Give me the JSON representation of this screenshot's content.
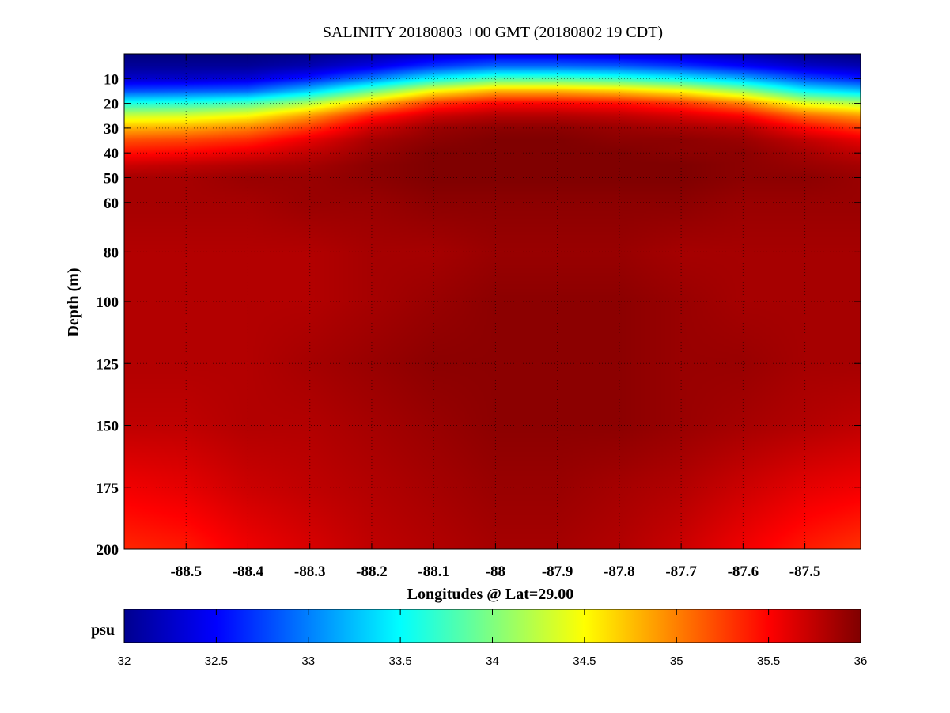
{
  "chart_data": {
    "type": "heatmap",
    "title": "SALINITY 20180803 +00 GMT (20180802 19 CDT)",
    "xlabel": "Longitudes @ Lat=29.00",
    "ylabel": "Depth (m)",
    "x_ticks": [
      -88.5,
      -88.4,
      -88.3,
      -88.2,
      -88.1,
      -88,
      -87.9,
      -87.8,
      -87.7,
      -87.6,
      -87.5
    ],
    "x_tick_labels": [
      "-88.5",
      "-88.4",
      "-88.3",
      "-88.2",
      "-88.1",
      "-88",
      "-87.9",
      "-87.8",
      "-87.7",
      "-87.6",
      "-87.5"
    ],
    "xlim": [
      -88.6,
      -87.41
    ],
    "y_ticks": [
      10,
      20,
      30,
      40,
      50,
      60,
      80,
      100,
      125,
      150,
      175,
      200
    ],
    "y_tick_labels": [
      "10",
      "20",
      "30",
      "40",
      "50",
      "60",
      "80",
      "100",
      "125",
      "150",
      "175",
      "200"
    ],
    "ylim": [
      0,
      200
    ],
    "y_scale": "stretched (finer near surface)",
    "y_tick_fractions": [
      0.05,
      0.1,
      0.15,
      0.2,
      0.25,
      0.3,
      0.4,
      0.5,
      0.625,
      0.75,
      0.875,
      1.0
    ],
    "grid": true,
    "colorbar": {
      "unit_label": "psu",
      "min": 32,
      "max": 36,
      "ticks": [
        32,
        32.5,
        33,
        33.5,
        34,
        34.5,
        35,
        35.5,
        36
      ],
      "tick_labels": [
        "32",
        "32.5",
        "33",
        "33.5",
        "34",
        "34.5",
        "35",
        "35.5",
        "36"
      ],
      "colormap": "jet",
      "placement": "bottom"
    },
    "x": [
      -88.6,
      -88.5,
      -88.4,
      -88.3,
      -88.2,
      -88.1,
      -88.0,
      -87.9,
      -87.8,
      -87.7,
      -87.6,
      -87.5,
      -87.41
    ],
    "depth": [
      0,
      5,
      10,
      15,
      20,
      25,
      30,
      35,
      40,
      45,
      50,
      60,
      80,
      100,
      125,
      150,
      175,
      200
    ],
    "values": [
      [
        32.0,
        32.0,
        32.0,
        32.05,
        32.15,
        32.3,
        32.4,
        32.4,
        32.35,
        32.3,
        32.2,
        32.05,
        32.0
      ],
      [
        32.1,
        32.1,
        32.1,
        32.2,
        32.4,
        32.7,
        32.9,
        32.9,
        32.85,
        32.7,
        32.5,
        32.3,
        32.2
      ],
      [
        32.3,
        32.3,
        32.35,
        32.6,
        33.0,
        33.5,
        33.8,
        33.8,
        33.7,
        33.5,
        33.2,
        32.8,
        32.6
      ],
      [
        32.8,
        32.85,
        32.9,
        33.3,
        33.9,
        34.5,
        34.8,
        34.8,
        34.7,
        34.5,
        34.1,
        33.5,
        33.3
      ],
      [
        33.6,
        33.65,
        33.8,
        34.2,
        34.8,
        35.3,
        35.5,
        35.5,
        35.45,
        35.3,
        35.0,
        34.4,
        34.2
      ],
      [
        34.3,
        34.35,
        34.5,
        34.9,
        35.4,
        35.7,
        35.8,
        35.8,
        35.75,
        35.65,
        35.5,
        35.1,
        34.9
      ],
      [
        34.8,
        34.85,
        35.0,
        35.3,
        35.7,
        35.9,
        35.95,
        35.95,
        35.9,
        35.85,
        35.8,
        35.5,
        35.3
      ],
      [
        35.2,
        35.25,
        35.35,
        35.6,
        35.85,
        35.95,
        36.0,
        36.0,
        35.95,
        35.95,
        35.9,
        35.75,
        35.6
      ],
      [
        35.45,
        35.5,
        35.6,
        35.75,
        35.9,
        36.0,
        36.0,
        36.0,
        36.0,
        35.95,
        35.95,
        35.85,
        35.75
      ],
      [
        35.7,
        35.75,
        35.8,
        35.85,
        35.95,
        36.0,
        36.0,
        36.0,
        36.0,
        36.0,
        35.95,
        35.9,
        35.85
      ],
      [
        35.85,
        35.85,
        35.9,
        35.9,
        35.95,
        36.0,
        36.0,
        36.0,
        36.0,
        36.0,
        35.95,
        35.95,
        35.9
      ],
      [
        35.85,
        35.85,
        35.85,
        35.9,
        35.9,
        35.95,
        35.95,
        35.95,
        35.95,
        35.95,
        35.9,
        35.9,
        35.9
      ],
      [
        35.8,
        35.8,
        35.8,
        35.8,
        35.85,
        35.85,
        35.9,
        35.9,
        35.9,
        35.85,
        35.85,
        35.85,
        35.85
      ],
      [
        35.8,
        35.8,
        35.8,
        35.8,
        35.85,
        35.9,
        35.95,
        35.95,
        35.95,
        35.9,
        35.85,
        35.85,
        35.85
      ],
      [
        35.8,
        35.8,
        35.8,
        35.85,
        35.9,
        35.95,
        35.95,
        35.95,
        35.95,
        35.9,
        35.9,
        35.85,
        35.85
      ],
      [
        35.75,
        35.75,
        35.8,
        35.8,
        35.85,
        35.9,
        35.95,
        35.95,
        35.95,
        35.9,
        35.85,
        35.8,
        35.75
      ],
      [
        35.55,
        35.6,
        35.7,
        35.75,
        35.8,
        35.85,
        35.9,
        35.9,
        35.85,
        35.8,
        35.7,
        35.6,
        35.55
      ],
      [
        35.35,
        35.4,
        35.55,
        35.65,
        35.75,
        35.8,
        35.85,
        35.85,
        35.8,
        35.7,
        35.55,
        35.4,
        35.3
      ]
    ]
  }
}
